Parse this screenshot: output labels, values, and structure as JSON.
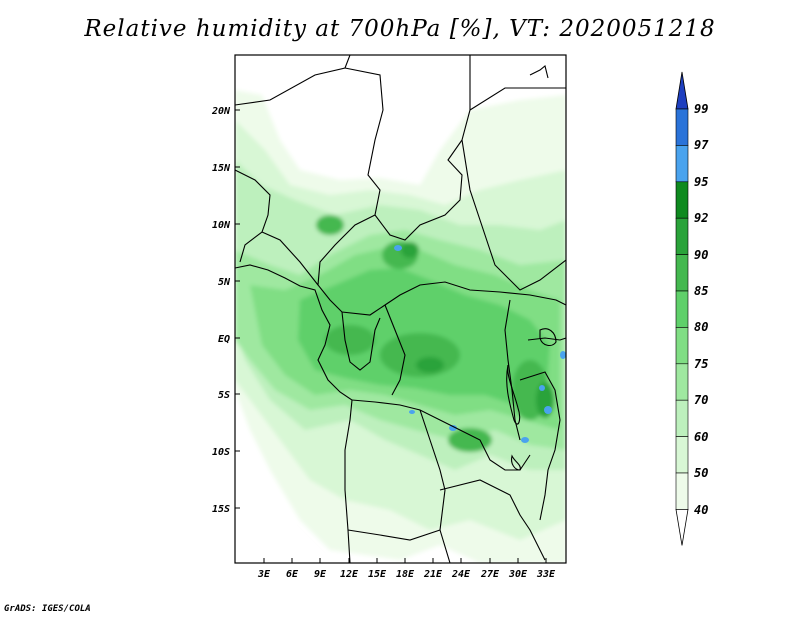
{
  "title": "Relative humidity at 700hPa [%], VT: 2020051218",
  "credit": "GrADS: IGES/COLA",
  "map": {
    "lat_labels": [
      "20N",
      "15N",
      "10N",
      "5N",
      "EQ",
      "5S",
      "10S",
      "15S"
    ],
    "lon_labels": [
      "3E",
      "6E",
      "9E",
      "12E",
      "15E",
      "18E",
      "21E",
      "24E",
      "27E",
      "30E",
      "33E"
    ]
  },
  "colorbar": {
    "levels": [
      "99",
      "97",
      "95",
      "92",
      "90",
      "85",
      "80",
      "75",
      "70",
      "60",
      "50",
      "40"
    ],
    "colors": [
      "#1e3fbf",
      "#2a73d9",
      "#4aa3ee",
      "#0f8a1f",
      "#2aa33a",
      "#44b84f",
      "#5fd06a",
      "#80de84",
      "#9fe8a0",
      "#bdf0bd",
      "#d8f7d5",
      "#eefbea"
    ]
  }
}
